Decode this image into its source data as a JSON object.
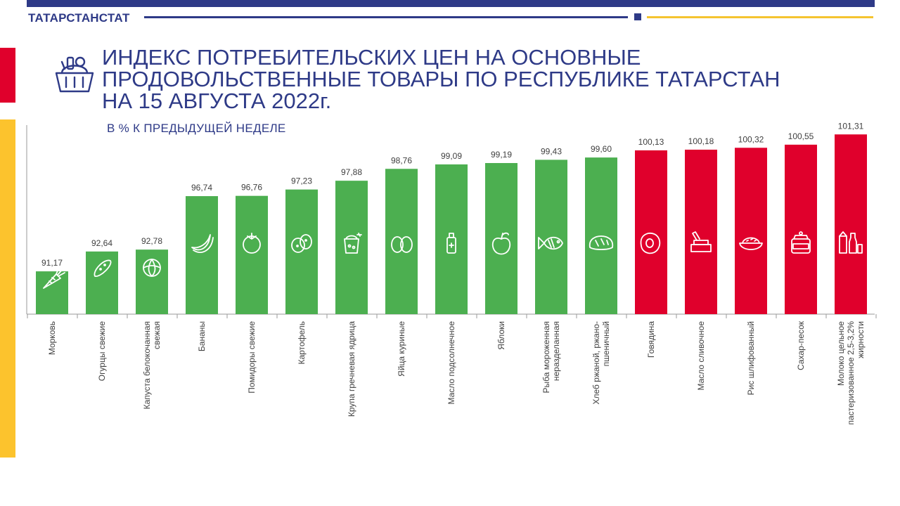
{
  "header": {
    "org_name": "ТАТАРСТАНСТАТ",
    "title_lines": [
      "ИНДЕКС ПОТРЕБИТЕЛЬСКИХ ЦЕН НА ОСНОВНЫЕ",
      "ПРОДОВОЛЬСТВЕННЫЕ ТОВАРЫ ПО РЕСПУБЛИКЕ ТАТАРСТАН",
      "НА 15 АВГУСТА 2022г."
    ],
    "subtitle": "В % К ПРЕДЫДУЩЕЙ НЕДЕЛЕ",
    "title_icon": "grocery-basket-icon"
  },
  "colors": {
    "brand_blue": "#2e3a87",
    "accent_yellow": "#fcc32d",
    "accent_red": "#e0002c",
    "bar_below_100": "#4caf50",
    "bar_above_100": "#e0002c"
  },
  "chart_data": {
    "type": "bar",
    "categories": [
      "Морковь",
      "Огурцы свежие",
      "Капуста белокочанная свежая",
      "Бананы",
      "Помидоры свежие",
      "Картофель",
      "Крупа гречневая ядрица",
      "Яйца куриные",
      "Масло подсолнечное",
      "Яблоки",
      "Рыба мороженная неразделанная",
      "Хлеб ржаной, ржано-пшеничный",
      "Говядина",
      "Масло сливочное",
      "Рис шлифованный",
      "Сахар-песок",
      "Молоко цельное пастеризованное 2,5-3,2% жирности"
    ],
    "category_label_lines": [
      [
        "Морковь"
      ],
      [
        "Огурцы свежие"
      ],
      [
        "Капуста белокочанная",
        "свежая"
      ],
      [
        "Бананы"
      ],
      [
        "Помидоры свежие"
      ],
      [
        "Картофель"
      ],
      [
        "Крупа гречневая ядрица"
      ],
      [
        "Яйца куриные"
      ],
      [
        "Масло подсолнечное"
      ],
      [
        "Яблоки"
      ],
      [
        "Рыба мороженная",
        "неразделанная"
      ],
      [
        "Хлеб ржаной, ржано-",
        "пшеничный"
      ],
      [
        "Говядина"
      ],
      [
        "Масло сливочное"
      ],
      [
        "Рис шлифованный"
      ],
      [
        "Сахар-песок"
      ],
      [
        "Молоко цельное",
        "пастеризованное 2,5-3,2%",
        "жирности"
      ]
    ],
    "values": [
      91.17,
      92.64,
      92.78,
      96.74,
      96.76,
      97.23,
      97.88,
      98.76,
      99.09,
      99.19,
      99.43,
      99.6,
      100.13,
      100.18,
      100.32,
      100.55,
      101.31
    ],
    "value_labels": [
      "91,17",
      "92,64",
      "92,78",
      "96,74",
      "96,76",
      "97,23",
      "97,88",
      "98,76",
      "99,09",
      "99,19",
      "99,43",
      "99,60",
      "100,13",
      "100,18",
      "100,32",
      "100,55",
      "101,31"
    ],
    "icons": [
      "carrot-icon",
      "cucumber-icon",
      "cabbage-icon",
      "banana-icon",
      "tomato-icon",
      "potato-icon",
      "buckwheat-icon",
      "eggs-icon",
      "oil-bottle-icon",
      "apple-icon",
      "fish-icon",
      "bread-icon",
      "beef-steak-icon",
      "butter-icon",
      "rice-bowl-icon",
      "sugar-jar-icon",
      "milk-icon"
    ],
    "ylim": [
      88,
      102
    ],
    "grid": false,
    "legend": "none"
  }
}
